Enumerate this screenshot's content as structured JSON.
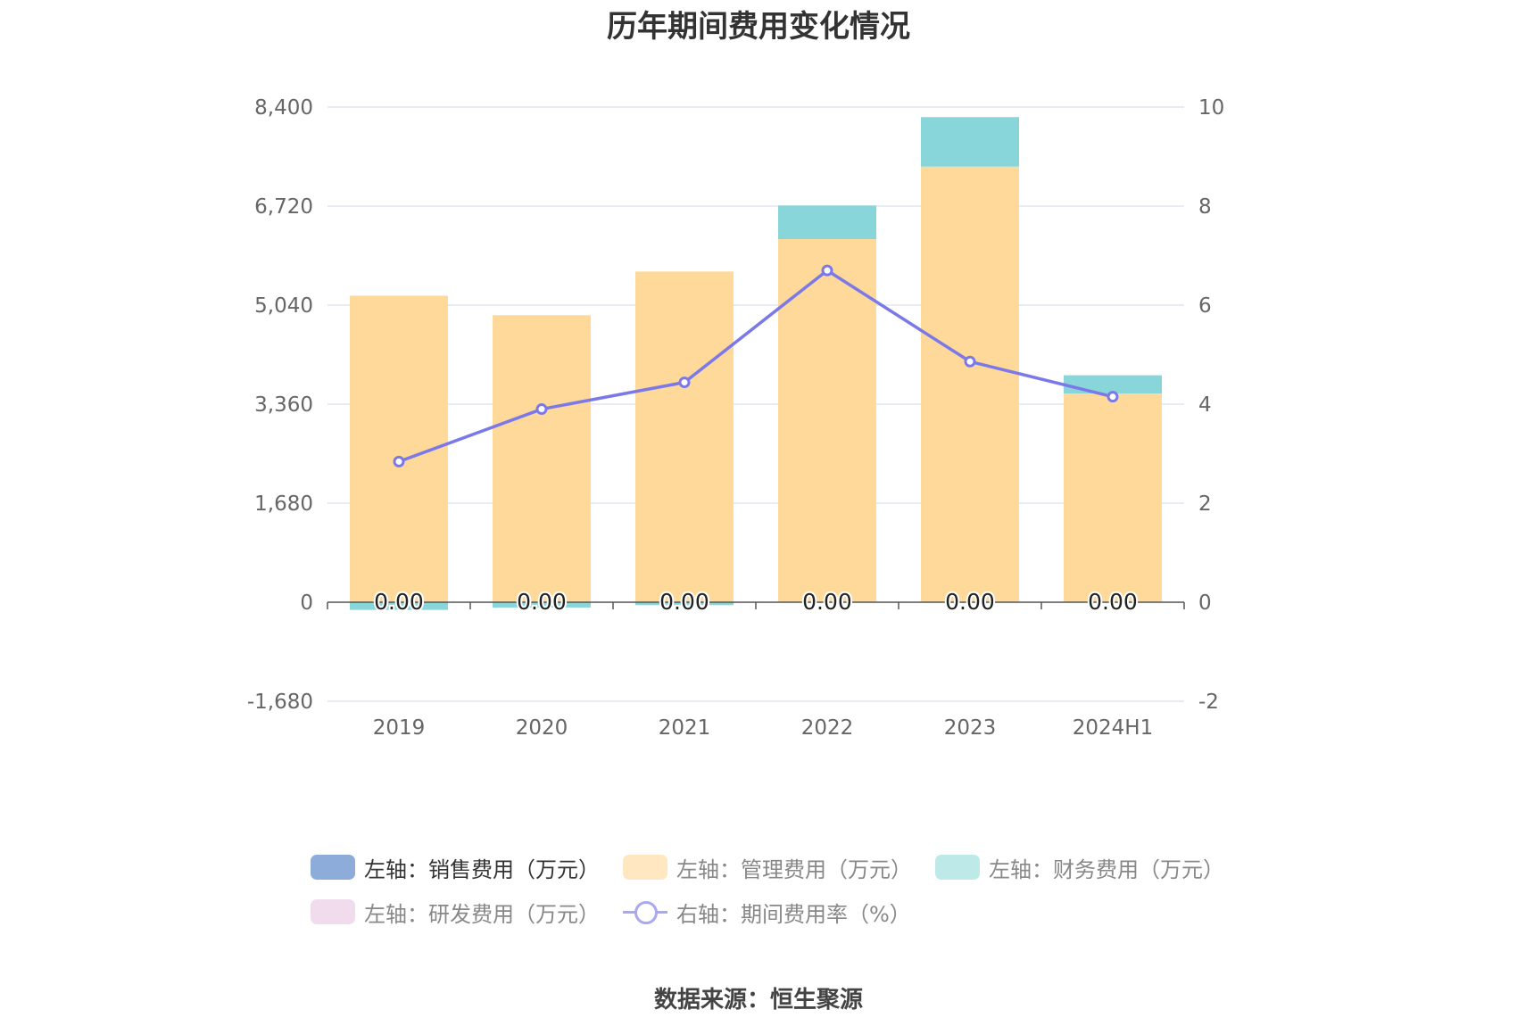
{
  "title": "历年期间费用变化情况",
  "source_text": "数据来源：恒生聚源",
  "legend": [
    {
      "label": "左轴：销售费用（万元）",
      "color": "#8eacd9",
      "kind": "box",
      "active": true
    },
    {
      "label": "左轴：管理费用（万元）",
      "color": "#ffe7c2",
      "kind": "box",
      "active": false
    },
    {
      "label": "左轴：财务费用（万元）",
      "color": "#bde9e9",
      "kind": "box",
      "active": false
    },
    {
      "label": "左轴：研发费用（万元）",
      "color": "#f1dced",
      "kind": "box",
      "active": false
    },
    {
      "label": "右轴：期间费用率（%）",
      "color": "#a9a8f0",
      "kind": "line",
      "active": false
    }
  ],
  "chart_data": {
    "type": "bar",
    "stacked": true,
    "categories": [
      "2019",
      "2020",
      "2021",
      "2022",
      "2023",
      "2024H1"
    ],
    "y_left": {
      "min": -1680,
      "max": 8400,
      "ticks": [
        "8,400",
        "6,720",
        "5,040",
        "3,360",
        "1,680",
        "0",
        "-1,680"
      ]
    },
    "y_right": {
      "min": -2,
      "max": 10,
      "ticks": [
        "10",
        "8",
        "6",
        "4",
        "2",
        "0",
        "-2"
      ]
    },
    "series": [
      {
        "name": "左轴：销售费用（万元）",
        "axis": "left",
        "color": "#8eacd9",
        "values": [
          0,
          0,
          0,
          0,
          0,
          0
        ]
      },
      {
        "name": "左轴：管理费用（万元）",
        "axis": "left",
        "color": "#ffd99a",
        "values": [
          5200,
          4870,
          5610,
          6160,
          7390,
          3540
        ]
      },
      {
        "name": "左轴：财务费用（万元）",
        "axis": "left",
        "color": "#88d6da",
        "values": [
          -130,
          -90,
          -50,
          570,
          840,
          310
        ]
      },
      {
        "name": "左轴：研发费用（万元）",
        "axis": "left",
        "color": "#f1dced",
        "values": [
          0,
          0,
          0,
          0,
          0,
          0
        ]
      },
      {
        "name": "右轴：期间费用率（%）",
        "axis": "right",
        "type": "line",
        "color": "#7b79e8",
        "values": [
          2.84,
          3.9,
          4.44,
          6.7,
          4.86,
          4.15
        ]
      }
    ],
    "data_labels": [
      "0.00",
      "0.00",
      "0.00",
      "0.00",
      "0.00",
      "0.00"
    ],
    "grid": true
  }
}
